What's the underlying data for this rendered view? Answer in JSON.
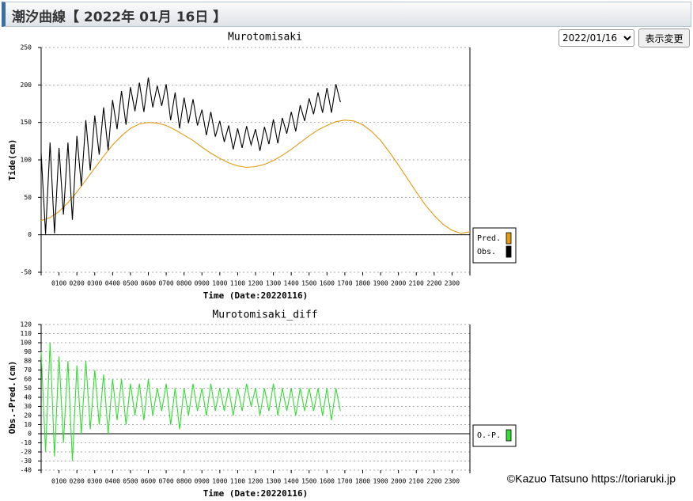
{
  "header": {
    "title": "潮汐曲線【 2022年 01月 16日 】"
  },
  "controls": {
    "date_select": "2022/01/16",
    "button": "表示変更"
  },
  "credit": "©Kazuo Tatsuno https://toriaruki.jp",
  "chart_data": [
    {
      "type": "line",
      "title": "Murotomisaki",
      "x_label": "Time (Date:20220116)",
      "y_label": "Tide(cm)",
      "xlim": [
        0,
        24
      ],
      "ylim": [
        -50,
        250
      ],
      "yticks": [
        -50,
        0,
        50,
        100,
        150,
        200,
        250
      ],
      "xticks": [
        {
          "value": 1,
          "label": "0100"
        },
        {
          "value": 2,
          "label": "0200"
        },
        {
          "value": 3,
          "label": "0300"
        },
        {
          "value": 4,
          "label": "0400"
        },
        {
          "value": 5,
          "label": "0500"
        },
        {
          "value": 6,
          "label": "0600"
        },
        {
          "value": 7,
          "label": "0700"
        },
        {
          "value": 8,
          "label": "0800"
        },
        {
          "value": 9,
          "label": "0900"
        },
        {
          "value": 10,
          "label": "1000"
        },
        {
          "value": 11,
          "label": "1100"
        },
        {
          "value": 12,
          "label": "1200"
        },
        {
          "value": 13,
          "label": "1300"
        },
        {
          "value": 14,
          "label": "1400"
        },
        {
          "value": 15,
          "label": "1500"
        },
        {
          "value": 16,
          "label": "1600"
        },
        {
          "value": 17,
          "label": "1700"
        },
        {
          "value": 18,
          "label": "1800"
        },
        {
          "value": 19,
          "label": "1900"
        },
        {
          "value": 20,
          "label": "2000"
        },
        {
          "value": 21,
          "label": "2100"
        },
        {
          "value": 22,
          "label": "2200"
        },
        {
          "value": 23,
          "label": "2300"
        }
      ],
      "grid": true,
      "legend": "right",
      "series": [
        {
          "name": "Pred.",
          "color": "#e39b12",
          "x": [
            0,
            0.5,
            1,
            1.5,
            2,
            2.5,
            3,
            3.5,
            4,
            4.5,
            5,
            5.5,
            6,
            6.5,
            7,
            7.5,
            8,
            8.5,
            9,
            9.5,
            10,
            10.5,
            11,
            11.5,
            12,
            12.5,
            13,
            13.5,
            14,
            14.5,
            15,
            15.5,
            16,
            16.5,
            17,
            17.5,
            18,
            18.5,
            19,
            19.5,
            20,
            20.5,
            21,
            21.5,
            22,
            22.5,
            23,
            23.5,
            24
          ],
          "values": [
            19,
            23,
            31,
            43,
            57,
            73,
            89,
            105,
            120,
            132,
            142,
            148,
            150,
            149,
            146,
            140,
            133,
            126,
            117,
            109,
            102,
            96,
            92,
            90,
            91,
            94,
            99,
            106,
            114,
            123,
            132,
            140,
            146,
            151,
            153,
            152,
            147,
            138,
            126,
            110,
            93,
            75,
            57,
            40,
            26,
            14,
            6,
            2,
            4
          ]
        },
        {
          "name": "Obs.",
          "color": "#000000",
          "x": [
            0,
            0.25,
            0.5,
            0.75,
            1,
            1.25,
            1.5,
            1.75,
            2,
            2.25,
            2.5,
            2.75,
            3,
            3.25,
            3.5,
            3.75,
            4,
            4.25,
            4.5,
            4.75,
            5,
            5.25,
            5.5,
            5.75,
            6,
            6.25,
            6.5,
            6.75,
            7,
            7.25,
            7.5,
            7.75,
            8,
            8.25,
            8.5,
            8.75,
            9,
            9.25,
            9.5,
            9.75,
            10,
            10.25,
            10.5,
            10.75,
            11,
            11.25,
            11.5,
            11.75,
            12,
            12.25,
            12.5,
            12.75,
            13,
            13.25,
            13.5,
            13.75,
            14,
            14.25,
            14.5,
            14.75,
            15,
            15.25,
            15.5,
            15.75,
            16,
            16.25,
            16.5,
            16.75
          ],
          "values": [
            109,
            1,
            123,
            2,
            116,
            27,
            123,
            20,
            132,
            65,
            153,
            86,
            159,
            107,
            170,
            113,
            180,
            141,
            192,
            147,
            197,
            165,
            203,
            164,
            210,
            170,
            199,
            172,
            201,
            153,
            190,
            142,
            183,
            149,
            181,
            146,
            167,
            133,
            164,
            131,
            152,
            124,
            146,
            114,
            142,
            116,
            145,
            120,
            141,
            112,
            144,
            121,
            154,
            122,
            156,
            135,
            164,
            138,
            173,
            152,
            182,
            161,
            190,
            163,
            196,
            163,
            201,
            177
          ]
        }
      ]
    },
    {
      "type": "line",
      "title": "Murotomisaki_diff",
      "x_label": "Time (Date:20220116)",
      "y_label": "Obs.-Pred.(cm)",
      "xlim": [
        0,
        24
      ],
      "ylim": [
        -40,
        120
      ],
      "yticks": [
        -40,
        -30,
        -20,
        -10,
        0,
        10,
        20,
        30,
        40,
        50,
        60,
        70,
        80,
        90,
        100,
        110,
        120
      ],
      "xticks": [
        {
          "value": 1,
          "label": "0100"
        },
        {
          "value": 2,
          "label": "0200"
        },
        {
          "value": 3,
          "label": "0300"
        },
        {
          "value": 4,
          "label": "0400"
        },
        {
          "value": 5,
          "label": "0500"
        },
        {
          "value": 6,
          "label": "0600"
        },
        {
          "value": 7,
          "label": "0700"
        },
        {
          "value": 8,
          "label": "0800"
        },
        {
          "value": 9,
          "label": "0900"
        },
        {
          "value": 10,
          "label": "1000"
        },
        {
          "value": 11,
          "label": "1100"
        },
        {
          "value": 12,
          "label": "1200"
        },
        {
          "value": 13,
          "label": "1300"
        },
        {
          "value": 14,
          "label": "1400"
        },
        {
          "value": 15,
          "label": "1500"
        },
        {
          "value": 16,
          "label": "1600"
        },
        {
          "value": 17,
          "label": "1700"
        },
        {
          "value": 18,
          "label": "1800"
        },
        {
          "value": 19,
          "label": "1900"
        },
        {
          "value": 20,
          "label": "2000"
        },
        {
          "value": 21,
          "label": "2100"
        },
        {
          "value": 22,
          "label": "2200"
        },
        {
          "value": 23,
          "label": "2300"
        }
      ],
      "grid": true,
      "legend": "right",
      "series": [
        {
          "name": "O.-P.",
          "color": "#33dd33",
          "x": [
            0,
            0.25,
            0.5,
            0.75,
            1,
            1.25,
            1.5,
            1.75,
            2,
            2.25,
            2.5,
            2.75,
            3,
            3.25,
            3.5,
            3.75,
            4,
            4.25,
            4.5,
            4.75,
            5,
            5.25,
            5.5,
            5.75,
            6,
            6.25,
            6.5,
            6.75,
            7,
            7.25,
            7.5,
            7.75,
            8,
            8.25,
            8.5,
            8.75,
            9,
            9.25,
            9.5,
            9.75,
            10,
            10.25,
            10.5,
            10.75,
            11,
            11.25,
            11.5,
            11.75,
            12,
            12.25,
            12.5,
            12.75,
            13,
            13.25,
            13.5,
            13.75,
            14,
            14.25,
            14.5,
            14.75,
            15,
            15.25,
            15.5,
            15.75,
            16,
            16.25,
            16.5,
            16.75
          ],
          "values": [
            90,
            -20,
            100,
            -25,
            85,
            -10,
            80,
            -30,
            75,
            0,
            80,
            5,
            70,
            10,
            65,
            0,
            60,
            15,
            60,
            10,
            55,
            20,
            55,
            15,
            60,
            20,
            50,
            25,
            55,
            10,
            50,
            5,
            50,
            20,
            55,
            25,
            50,
            20,
            55,
            25,
            50,
            25,
            50,
            20,
            50,
            25,
            55,
            30,
            50,
            20,
            50,
            25,
            55,
            20,
            50,
            25,
            50,
            20,
            50,
            25,
            50,
            25,
            50,
            20,
            50,
            15,
            50,
            25
          ]
        }
      ]
    }
  ]
}
